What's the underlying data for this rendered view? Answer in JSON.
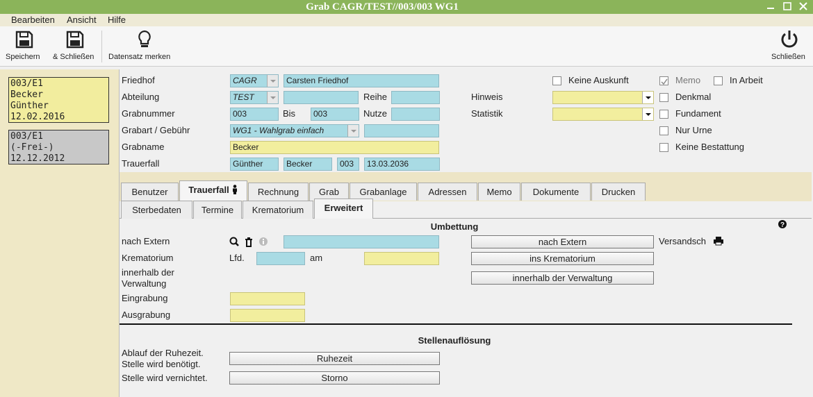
{
  "window": {
    "title": "Grab CAGR/TEST//003/003 WG1"
  },
  "menu": [
    "Bearbeiten",
    "Ansicht",
    "Hilfe"
  ],
  "toolbar": [
    "Speichern",
    "& Schließen",
    "Datensatz merken",
    "Schließen"
  ],
  "records": [
    [
      "003/E1",
      "Becker",
      "Günther",
      "12.02.2016"
    ],
    [
      "003/E1",
      "(-Frei-)",
      "12.12.2012"
    ]
  ],
  "form": {
    "friedhof": {
      "label": "Friedhof",
      "code": "CAGR",
      "name": "Carsten Friedhof"
    },
    "abteilung": {
      "label": "Abteilung",
      "code": "TEST",
      "reihe_label": "Reihe"
    },
    "grabnummer": {
      "label": "Grabnummer",
      "from": "003",
      "bis_label": "Bis",
      "to": "003",
      "nutze_label": "Nutze"
    },
    "grabart": {
      "label": "Grabart / Gebühr",
      "value": "WG1 - Wahlgrab einfach"
    },
    "grabname": {
      "label": "Grabname",
      "value": "Becker"
    },
    "trauerfall": {
      "label": "Trauerfall",
      "first_name": "Günther",
      "last_name": "Becker",
      "number": "003",
      "date": "13.03.2036"
    },
    "hinweis": {
      "label": "Hinweis"
    },
    "statistik": {
      "label": "Statistik"
    },
    "checkboxes": [
      {
        "label": "Keine Auskunft",
        "checked": false
      },
      {
        "label": "Memo",
        "checked": true
      },
      {
        "label": "In Arbeit",
        "checked": false
      },
      {
        "label": "Denkmal",
        "checked": false
      },
      {
        "label": "Fundament",
        "checked": false
      },
      {
        "label": "Nur Urne",
        "checked": false
      },
      {
        "label": "Keine Bestattung",
        "checked": false
      }
    ]
  },
  "tabs": [
    {
      "label": "Benutzer",
      "active": false
    },
    {
      "label": "Trauerfall",
      "active": true
    },
    {
      "label": "Rechnung",
      "active": false
    },
    {
      "label": "Grab",
      "active": false
    },
    {
      "label": "Grabanlage",
      "active": false
    },
    {
      "label": "Adressen",
      "active": false
    },
    {
      "label": "Memo",
      "active": false
    },
    {
      "label": "Dokumente",
      "active": false
    },
    {
      "label": "Drucken",
      "active": false
    }
  ],
  "subtabs": [
    {
      "label": "Sterbedaten",
      "active": false
    },
    {
      "label": "Termine",
      "active": false
    },
    {
      "label": "Krematorium",
      "active": false
    },
    {
      "label": "Erweitert",
      "active": true
    }
  ],
  "umbettung": {
    "title": "Umbettung",
    "nach_extern_label": "nach Extern",
    "krematorium_label": "Krematorium",
    "lfd_label": "Lfd.",
    "am_label": "am",
    "verwaltung_label": "innerhalb der Verwaltung",
    "eingrabung_label": "Eingrabung",
    "ausgrabung_label": "Ausgrabung",
    "versand_label": "Versandsch",
    "buttons": [
      "nach Extern",
      "ins Krematorium",
      "innerhalb der Verwaltung"
    ]
  },
  "stellenaufloesung": {
    "title": "Stellenauflösung",
    "ruhezeit_label": "Ablauf der Ruhezeit. Stelle wird benötigt.",
    "vernichtet_label": "Stelle wird vernichtet.",
    "buttons": [
      "Ruhezeit",
      "Storno"
    ]
  }
}
